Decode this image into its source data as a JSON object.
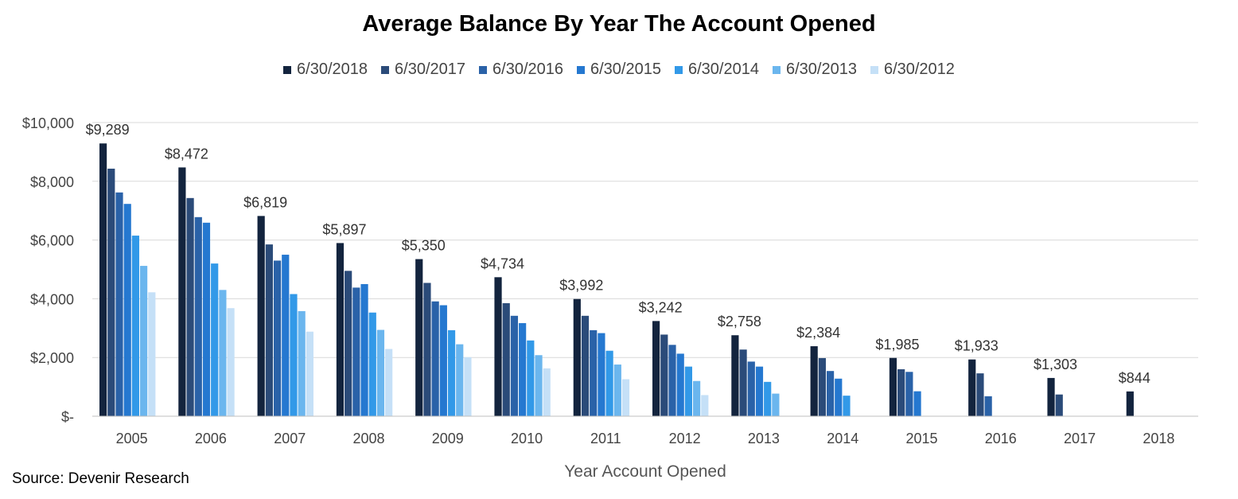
{
  "chart_data": {
    "type": "bar",
    "title": "Average Balance By Year The Account Opened",
    "xlabel": "Year Account Opened",
    "ylabel": "",
    "ylim": [
      0,
      10000
    ],
    "yticks": [
      0,
      2000,
      4000,
      6000,
      8000,
      10000
    ],
    "ytick_labels": [
      "$-",
      "$2,000",
      "$4,000",
      "$6,000",
      "$8,000",
      "$10,000"
    ],
    "grid": true,
    "legend_position": "top-center",
    "categories": [
      "2005",
      "2006",
      "2007",
      "2008",
      "2009",
      "2010",
      "2011",
      "2012",
      "2013",
      "2014",
      "2015",
      "2016",
      "2017",
      "2018"
    ],
    "series": [
      {
        "name": "6/30/2018",
        "color": "#13243e",
        "values": [
          9289,
          8472,
          6819,
          5897,
          5350,
          4734,
          3992,
          3242,
          2758,
          2384,
          1985,
          1933,
          1303,
          844
        ]
      },
      {
        "name": "6/30/2017",
        "color": "#2b4b79",
        "values": [
          8430,
          7430,
          5850,
          4950,
          4540,
          3850,
          3420,
          2780,
          2270,
          1980,
          1600,
          1460,
          740,
          null
        ]
      },
      {
        "name": "6/30/2016",
        "color": "#2a62a8",
        "values": [
          7620,
          6780,
          5300,
          4380,
          3910,
          3420,
          2930,
          2430,
          1860,
          1540,
          1510,
          680,
          null,
          null
        ]
      },
      {
        "name": "6/30/2015",
        "color": "#2578d0",
        "values": [
          7230,
          6590,
          5500,
          4500,
          3780,
          3170,
          2830,
          2130,
          1690,
          1280,
          850,
          null,
          null,
          null
        ]
      },
      {
        "name": "6/30/2014",
        "color": "#3299e8",
        "values": [
          6150,
          5200,
          4160,
          3530,
          2930,
          2580,
          2230,
          1690,
          1170,
          700,
          null,
          null,
          null,
          null
        ]
      },
      {
        "name": "6/30/2013",
        "color": "#6bb6ee",
        "values": [
          5120,
          4300,
          3580,
          2940,
          2450,
          2080,
          1760,
          1200,
          770,
          null,
          null,
          null,
          null,
          null
        ]
      },
      {
        "name": "6/30/2012",
        "color": "#c5e0f7",
        "values": [
          4220,
          3680,
          2880,
          2290,
          2010,
          1630,
          1260,
          720,
          null,
          null,
          null,
          null,
          null,
          null
        ]
      }
    ],
    "data_labels": [
      "$9,289",
      "$8,472",
      "$6,819",
      "$5,897",
      "$5,350",
      "$4,734",
      "$3,992",
      "$3,242",
      "$2,758",
      "$2,384",
      "$1,985",
      "$1,933",
      "$1,303",
      "$844"
    ]
  },
  "source_note": "Source: Devenir Research"
}
